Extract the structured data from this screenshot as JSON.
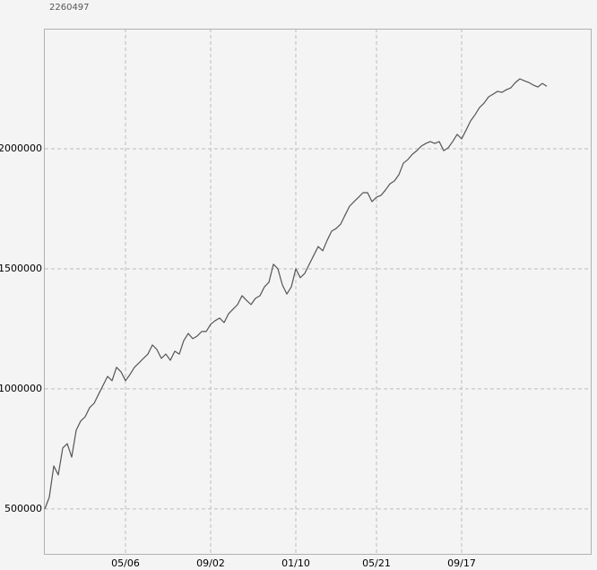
{
  "chart_data": {
    "type": "line",
    "annotation": "2260497",
    "categories": [
      null,
      null,
      null,
      null,
      null,
      null,
      null,
      null,
      null,
      null,
      null,
      null,
      null,
      null,
      null,
      null,
      null,
      null,
      "05/06",
      null,
      null,
      null,
      null,
      null,
      null,
      null,
      null,
      null,
      null,
      null,
      null,
      null,
      null,
      null,
      null,
      null,
      null,
      "09/02",
      null,
      null,
      null,
      null,
      null,
      null,
      null,
      null,
      null,
      null,
      null,
      null,
      null,
      null,
      null,
      null,
      null,
      null,
      "01/10",
      null,
      null,
      null,
      null,
      null,
      null,
      null,
      null,
      null,
      null,
      null,
      null,
      null,
      null,
      null,
      null,
      null,
      "05/21",
      null,
      null,
      null,
      null,
      null,
      null,
      null,
      null,
      null,
      null,
      null,
      null,
      null,
      null,
      null,
      null,
      null,
      null,
      "09/17",
      null,
      null,
      null,
      null,
      null,
      null,
      null,
      null,
      null,
      null,
      null,
      null,
      null,
      null,
      null,
      null,
      null,
      null,
      null
    ],
    "values": [
      500000,
      549000,
      679000,
      642000,
      754000,
      772000,
      716000,
      828000,
      866000,
      884000,
      922000,
      940000,
      978000,
      1015000,
      1052000,
      1034000,
      1090000,
      1071000,
      1034000,
      1060000,
      1090000,
      1108000,
      1127000,
      1145000,
      1183000,
      1164000,
      1127000,
      1145000,
      1119000,
      1157000,
      1145000,
      1201000,
      1231000,
      1209000,
      1220000,
      1239000,
      1239000,
      1269000,
      1284000,
      1295000,
      1276000,
      1313000,
      1332000,
      1351000,
      1388000,
      1369000,
      1351000,
      1377000,
      1388000,
      1425000,
      1444000,
      1519000,
      1500000,
      1433000,
      1395000,
      1425000,
      1500000,
      1463000,
      1481000,
      1519000,
      1556000,
      1593000,
      1575000,
      1619000,
      1657000,
      1668000,
      1686000,
      1724000,
      1761000,
      1780000,
      1798000,
      1817000,
      1817000,
      1780000,
      1798000,
      1806000,
      1828000,
      1854000,
      1866000,
      1892000,
      1940000,
      1955000,
      1977000,
      1992000,
      2011000,
      2022000,
      2030000,
      2022000,
      2030000,
      1992000,
      2004000,
      2030000,
      2060000,
      2041000,
      2078000,
      2116000,
      2142000,
      2172000,
      2190000,
      2216000,
      2227000,
      2239000,
      2235000,
      2246000,
      2254000,
      2276000,
      2291000,
      2283000,
      2276000,
      2265000,
      2257000,
      2272000,
      2260000
    ],
    "color": "#555555",
    "ylim": [
      313000,
      2500000
    ],
    "yticks": [
      500000,
      1000000,
      1500000,
      2000000
    ],
    "grid": true
  }
}
